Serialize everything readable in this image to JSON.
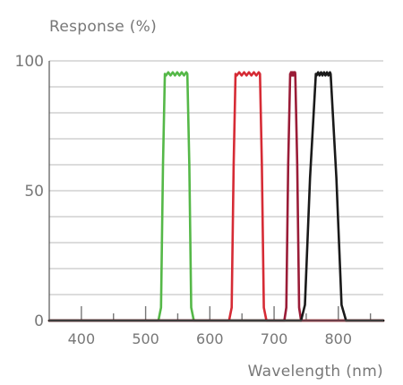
{
  "chart_data": {
    "type": "line",
    "title": "",
    "ylabel": "Response (%)",
    "xlabel": "Wavelength (nm)",
    "xlim": [
      350,
      870
    ],
    "ylim": [
      0,
      100
    ],
    "grid": "horizontal",
    "yticks": [
      0,
      50,
      100
    ],
    "ytick_labels": [
      "0",
      "50",
      "100"
    ],
    "xticks": [
      400,
      500,
      600,
      700,
      800
    ],
    "xtick_labels": [
      "400",
      "500",
      "600",
      "700",
      "800"
    ],
    "minor_xticks": [
      450,
      550,
      650,
      750,
      850
    ],
    "series": [
      {
        "color": "#55b848",
        "x": [
          350,
          520,
          524,
          527,
          530,
          565,
          568,
          571,
          575,
          870
        ],
        "y": [
          0,
          0,
          5,
          60,
          95,
          95,
          60,
          5,
          0,
          0
        ]
      },
      {
        "color": "#d62b35",
        "x": [
          350,
          630,
          634,
          637,
          640,
          678,
          681,
          684,
          688,
          870
        ],
        "y": [
          0,
          0,
          5,
          60,
          95,
          95,
          60,
          5,
          0,
          0
        ]
      },
      {
        "color": "#9a1c37",
        "x": [
          350,
          716,
          719,
          722,
          725,
          733,
          736,
          739,
          742,
          870
        ],
        "y": [
          0,
          0,
          5,
          60,
          95,
          95,
          60,
          5,
          0,
          0
        ]
      },
      {
        "color": "#1a1a1a",
        "x": [
          350,
          742,
          748,
          756,
          765,
          788,
          797,
          805,
          812,
          870
        ],
        "y": [
          0,
          0,
          6,
          55,
          95,
          95,
          55,
          6,
          0,
          0
        ]
      }
    ]
  }
}
